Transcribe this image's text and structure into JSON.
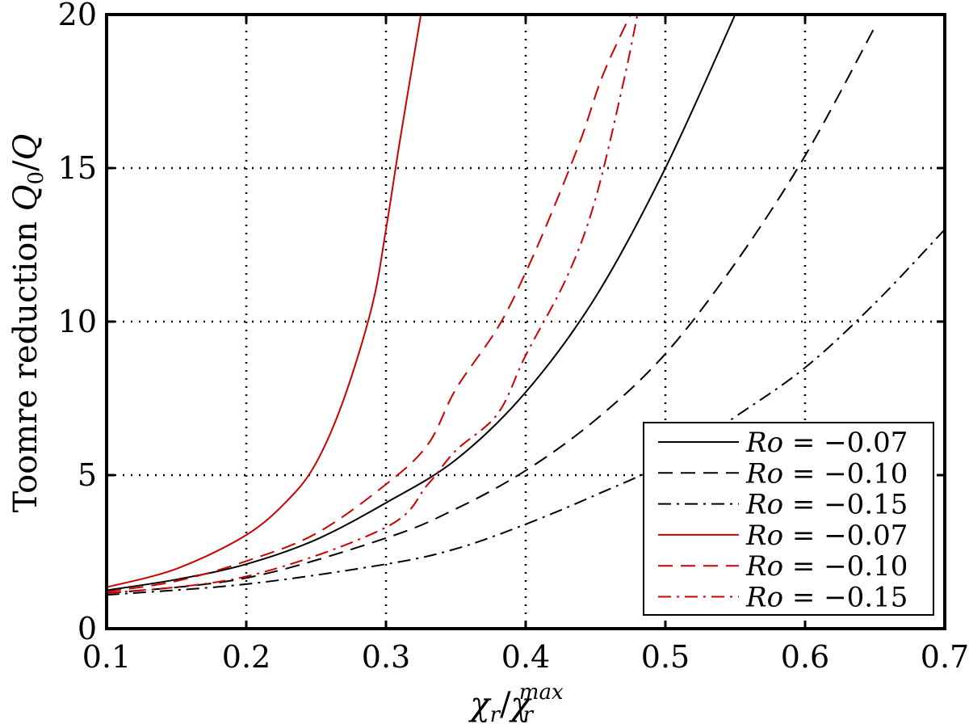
{
  "chart_data": {
    "type": "line",
    "title": "",
    "xlabel": "χr/χr^max",
    "xlabel_main": "χ",
    "xlabel_sub": "r",
    "xlabel_sep": "/",
    "xlabel_main2": "χ",
    "xlabel_sub2": "r",
    "xlabel_sup2": "max",
    "ylabel": "Toomre reduction Q0/Q",
    "ylabel_text": "Toomre reduction ",
    "ylabel_q": "Q",
    "ylabel_sub": "0",
    "ylabel_sep": "/",
    "ylabel_q2": "Q",
    "xlim": [
      0.1,
      0.7
    ],
    "ylim": [
      0,
      20
    ],
    "grid": true,
    "legend_position": "bottom-right",
    "xticks": [
      "0.1",
      "0.2",
      "0.3",
      "0.4",
      "0.5",
      "0.6",
      "0.7"
    ],
    "yticks": [
      "0",
      "5",
      "10",
      "15",
      "20"
    ],
    "series": [
      {
        "name": "Ro = −0.07",
        "label": "−0.07",
        "color": "#000000",
        "dash": "solid",
        "x": [
          0.1,
          0.15,
          0.2,
          0.25,
          0.3,
          0.35,
          0.4,
          0.45,
          0.5,
          0.55
        ],
        "y": [
          1.25,
          1.6,
          2.1,
          2.9,
          4.1,
          5.5,
          7.7,
          10.8,
          15.0,
          20.0
        ]
      },
      {
        "name": "Ro = −0.10",
        "label": "−0.10",
        "color": "#000000",
        "dash": "dash",
        "x": [
          0.1,
          0.2,
          0.3,
          0.35,
          0.4,
          0.45,
          0.5,
          0.55,
          0.6,
          0.65
        ],
        "y": [
          1.15,
          1.65,
          2.95,
          3.9,
          5.15,
          6.8,
          8.95,
          11.9,
          15.4,
          19.6
        ]
      },
      {
        "name": "Ro = −0.15",
        "label": "−0.15",
        "color": "#000000",
        "dash": "dashdot",
        "x": [
          0.1,
          0.2,
          0.3,
          0.35,
          0.4,
          0.45,
          0.5,
          0.55,
          0.6,
          0.65,
          0.7
        ],
        "y": [
          1.1,
          1.45,
          2.1,
          2.6,
          3.4,
          4.35,
          5.4,
          6.9,
          8.5,
          10.6,
          13.0
        ]
      },
      {
        "name": "Ro = −0.07",
        "label": "−0.07",
        "color": "#cc0000",
        "dash": "solid",
        "x": [
          0.1,
          0.15,
          0.2,
          0.23,
          0.25,
          0.27,
          0.29,
          0.3,
          0.31,
          0.325
        ],
        "y": [
          1.35,
          1.95,
          3.05,
          4.2,
          5.4,
          7.5,
          10.5,
          13.0,
          15.9,
          20.0
        ]
      },
      {
        "name": "Ro = −0.10",
        "label": "−0.10",
        "color": "#cc0000",
        "dash": "dash",
        "x": [
          0.1,
          0.15,
          0.2,
          0.25,
          0.3,
          0.33,
          0.35,
          0.38,
          0.4,
          0.42,
          0.44,
          0.455,
          0.475
        ],
        "y": [
          1.2,
          1.55,
          2.2,
          3.1,
          4.7,
          6.0,
          7.8,
          9.8,
          11.6,
          13.7,
          16.0,
          18.0,
          20.0
        ]
      },
      {
        "name": "Ro = −0.15",
        "label": "−0.15",
        "color": "#cc0000",
        "dash": "dashdot",
        "x": [
          0.1,
          0.2,
          0.3,
          0.33,
          0.35,
          0.38,
          0.4,
          0.43,
          0.45,
          0.47,
          0.48
        ],
        "y": [
          1.15,
          1.7,
          3.3,
          4.7,
          5.8,
          7.0,
          8.9,
          11.5,
          14.0,
          17.8,
          20.0
        ]
      }
    ],
    "legend_prefix": "Ro",
    "legend_eq": "="
  }
}
